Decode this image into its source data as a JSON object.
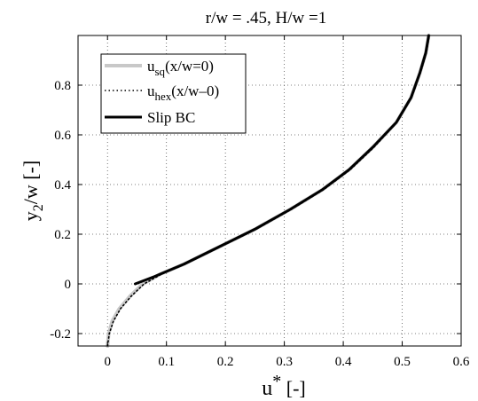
{
  "chart_data": {
    "type": "line",
    "title": "r/w = .45, H/w =1",
    "xlabel": {
      "main": "u",
      "sup": "*",
      "unit": " [-]"
    },
    "ylabel": {
      "main": "y",
      "sub": "2",
      "rest": "/w  [-]"
    },
    "xlim": [
      -0.05,
      0.6
    ],
    "ylim": [
      -0.25,
      1.0
    ],
    "xticks": [
      0,
      0.1,
      0.2,
      0.3,
      0.4,
      0.5,
      0.6
    ],
    "xtick_labels": [
      "0",
      "0.1",
      "0.2",
      "0.3",
      "0.4",
      "0.5",
      "0.6"
    ],
    "yticks": [
      -0.2,
      0,
      0.2,
      0.4,
      0.6,
      0.8
    ],
    "ytick_labels": [
      "-0.2",
      "0",
      "0.2",
      "0.4",
      "0.6",
      "0.8"
    ],
    "grid": true,
    "legend_position": "top-left",
    "series": [
      {
        "name": "u_sq(x/w=0)",
        "label_main": "u",
        "label_sub": "sq",
        "label_rest": "(x/w=0)",
        "style": "solid",
        "color": "#c8c8c8",
        "x": [
          0.0,
          0.002,
          0.008,
          0.02,
          0.038,
          0.06,
          0.09,
          0.13,
          0.19,
          0.25,
          0.31,
          0.365,
          0.41,
          0.45,
          0.49,
          0.515,
          0.53,
          0.54,
          0.545
        ],
        "y": [
          -0.25,
          -0.2,
          -0.15,
          -0.1,
          -0.05,
          0.0,
          0.04,
          0.08,
          0.15,
          0.22,
          0.3,
          0.38,
          0.46,
          0.55,
          0.65,
          0.75,
          0.85,
          0.93,
          1.0
        ]
      },
      {
        "name": "u_hex(x/w-0)",
        "label_main": "u",
        "label_sub": "hex",
        "label_rest": "(x/w–0)",
        "style": "dotted",
        "color": "#000000",
        "x": [
          0.0,
          0.003,
          0.01,
          0.022,
          0.04,
          0.062,
          0.092,
          0.132,
          0.192,
          0.252,
          0.312,
          0.367,
          0.412,
          0.452,
          0.491,
          0.516,
          0.531,
          0.541,
          0.546
        ],
        "y": [
          -0.25,
          -0.2,
          -0.15,
          -0.1,
          -0.05,
          0.0,
          0.04,
          0.08,
          0.15,
          0.22,
          0.3,
          0.38,
          0.46,
          0.55,
          0.65,
          0.75,
          0.85,
          0.93,
          1.0
        ]
      },
      {
        "name": "Slip BC",
        "label_main": "Slip BC",
        "label_sub": "",
        "label_rest": "",
        "style": "solid",
        "color": "#000000",
        "x": [
          0.047,
          0.08,
          0.13,
          0.19,
          0.25,
          0.31,
          0.365,
          0.41,
          0.45,
          0.49,
          0.515,
          0.53,
          0.54,
          0.545
        ],
        "y": [
          0.0,
          0.03,
          0.08,
          0.15,
          0.22,
          0.3,
          0.38,
          0.46,
          0.55,
          0.65,
          0.75,
          0.85,
          0.93,
          1.0
        ]
      }
    ]
  }
}
